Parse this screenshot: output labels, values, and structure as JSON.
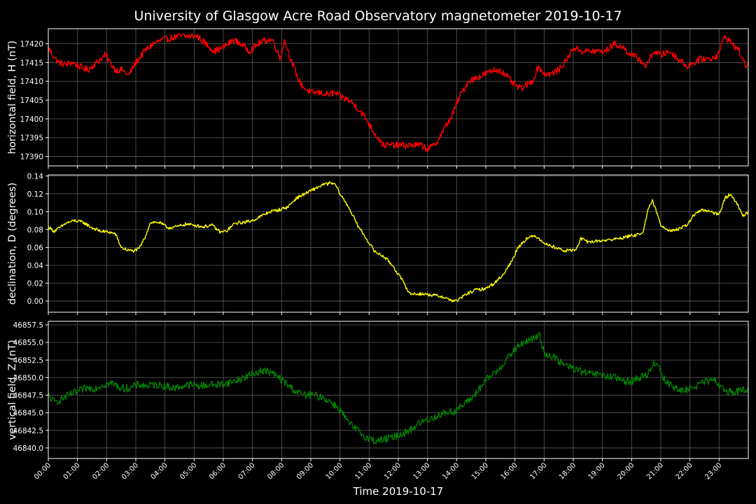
{
  "chart_data": {
    "type": "line",
    "title": "University of Glasgow Acre Road Observatory magnetometer 2019-10-17",
    "xlabel": "Time 2019-10-17",
    "x_unit": "hours",
    "xlim": [
      0,
      24
    ],
    "xtick_labels": [
      "00:00",
      "01:00",
      "02:00",
      "03:00",
      "04:00",
      "05:00",
      "06:00",
      "07:00",
      "08:00",
      "09:00",
      "10:00",
      "11:00",
      "12:00",
      "13:00",
      "14:00",
      "15:00",
      "16:00",
      "17:00",
      "18:00",
      "19:00",
      "20:00",
      "21:00",
      "22:00",
      "23:00"
    ],
    "grid": true,
    "panels": [
      {
        "ylabel": "horizontal field, H (nT)",
        "color": "#ff0000",
        "ylim": [
          17387.5,
          17424
        ],
        "yticks": [
          17390,
          17395,
          17400,
          17405,
          17410,
          17415,
          17420
        ],
        "ytick_labels": [
          "17390",
          "17395",
          "17400",
          "17405",
          "17410",
          "17415",
          "17420"
        ],
        "noise": 0.9,
        "x": [
          0,
          0.15,
          0.35,
          0.6,
          0.85,
          1.05,
          1.35,
          1.65,
          1.95,
          2.3,
          2.55,
          2.75,
          3,
          3.3,
          3.6,
          3.9,
          4.2,
          4.5,
          4.8,
          5.1,
          5.4,
          5.7,
          6.0,
          6.35,
          6.6,
          6.9,
          7.2,
          7.45,
          7.7,
          7.95,
          8.1,
          8.35,
          8.6,
          8.8,
          9.0,
          9.3,
          9.6,
          9.8,
          10.0,
          10.3,
          10.6,
          10.9,
          11.2,
          11.5,
          11.8,
          12.1,
          12.4,
          12.8,
          13.0,
          13.25,
          13.55,
          13.85,
          14.1,
          14.4,
          14.7,
          15.0,
          15.3,
          15.5,
          15.75,
          16.0,
          16.2,
          16.4,
          16.6,
          16.8,
          17.0,
          17.25,
          17.5,
          17.8,
          18.0,
          18.3,
          18.6,
          18.9,
          19.1,
          19.4,
          19.7,
          20.0,
          20.25,
          20.5,
          20.75,
          21.0,
          21.3,
          21.6,
          21.9,
          22.15,
          22.4,
          22.7,
          22.95,
          23.2,
          23.45,
          23.7,
          23.9,
          24
        ],
        "y": [
          17419,
          17417,
          17415,
          17414.5,
          17415,
          17414,
          17413,
          17415,
          17417,
          17413,
          17413,
          17411.5,
          17415,
          17418,
          17420,
          17421,
          17421.5,
          17422,
          17422,
          17422,
          17420,
          17418,
          17419,
          17421,
          17420,
          17418,
          17420,
          17421,
          17421,
          17416,
          17421,
          17415,
          17410,
          17408,
          17407,
          17407,
          17406.5,
          17407,
          17406,
          17405,
          17403,
          17400,
          17396,
          17393,
          17393,
          17393,
          17393,
          17393,
          17392,
          17393,
          17397,
          17401,
          17406,
          17410,
          17411,
          17412,
          17413,
          17413,
          17411,
          17409,
          17408,
          17409,
          17410,
          17414,
          17412,
          17412,
          17413,
          17416,
          17419,
          17418,
          17418,
          17418,
          17418,
          17420,
          17419,
          17417,
          17416,
          17414,
          17418,
          17417,
          17418,
          17416,
          17414,
          17415,
          17416,
          17416,
          17417,
          17422,
          17420,
          17418,
          17414,
          17415
        ]
      },
      {
        "ylabel": "declination, D (degrees)",
        "color": "#ffff00",
        "ylim": [
          -0.0125,
          0.141
        ],
        "yticks": [
          0.0,
          0.02,
          0.04,
          0.06,
          0.08,
          0.1,
          0.12,
          0.14
        ],
        "ytick_labels": [
          "0.00",
          "0.02",
          "0.04",
          "0.06",
          "0.08",
          "0.10",
          "0.12",
          "0.14"
        ],
        "noise": 0.0018,
        "x": [
          0,
          0.2,
          0.4,
          0.6,
          0.9,
          1.2,
          1.5,
          1.8,
          2.1,
          2.3,
          2.5,
          2.7,
          2.9,
          3.1,
          3.3,
          3.5,
          3.8,
          4.1,
          4.4,
          4.7,
          5.0,
          5.3,
          5.6,
          5.9,
          6.1,
          6.4,
          6.7,
          7.0,
          7.3,
          7.6,
          7.9,
          8.2,
          8.5,
          8.8,
          9.1,
          9.4,
          9.7,
          9.85,
          10.0,
          10.3,
          10.6,
          10.9,
          11.2,
          11.5,
          11.8,
          12.1,
          12.4,
          12.8,
          13.1,
          13.5,
          13.8,
          14.0,
          14.3,
          14.6,
          15.0,
          15.3,
          15.6,
          15.9,
          16.1,
          16.4,
          16.7,
          16.9,
          17.1,
          17.4,
          17.7,
          17.9,
          18.1,
          18.25,
          18.5,
          18.8,
          19.1,
          19.4,
          19.7,
          20.0,
          20.2,
          20.4,
          20.55,
          20.7,
          20.85,
          21.0,
          21.3,
          21.6,
          21.9,
          22.1,
          22.4,
          22.7,
          22.9,
          23.05,
          23.2,
          23.4,
          23.6,
          23.8,
          24
        ],
        "y": [
          0.083,
          0.078,
          0.082,
          0.087,
          0.09,
          0.088,
          0.082,
          0.078,
          0.077,
          0.075,
          0.06,
          0.057,
          0.056,
          0.058,
          0.07,
          0.088,
          0.088,
          0.082,
          0.083,
          0.086,
          0.085,
          0.083,
          0.085,
          0.077,
          0.078,
          0.087,
          0.088,
          0.09,
          0.095,
          0.1,
          0.102,
          0.105,
          0.115,
          0.12,
          0.125,
          0.13,
          0.132,
          0.13,
          0.12,
          0.105,
          0.085,
          0.07,
          0.055,
          0.05,
          0.04,
          0.025,
          0.008,
          0.008,
          0.007,
          0.005,
          0.001,
          0.0,
          0.007,
          0.012,
          0.014,
          0.02,
          0.03,
          0.045,
          0.06,
          0.07,
          0.073,
          0.068,
          0.063,
          0.06,
          0.056,
          0.057,
          0.057,
          0.07,
          0.066,
          0.067,
          0.068,
          0.069,
          0.071,
          0.073,
          0.074,
          0.078,
          0.1,
          0.113,
          0.1,
          0.085,
          0.079,
          0.08,
          0.085,
          0.095,
          0.102,
          0.1,
          0.097,
          0.1,
          0.115,
          0.12,
          0.11,
          0.095,
          0.1
        ]
      },
      {
        "ylabel": "vertical field, Z (nT)",
        "color": "#008000",
        "ylim": [
          46838.5,
          46858
        ],
        "yticks": [
          46840.0,
          46842.5,
          46845.0,
          46847.5,
          46850.0,
          46852.5,
          46855.0,
          46857.5
        ],
        "ytick_labels": [
          "46840.0",
          "46842.5",
          "46845.0",
          "46847.5",
          "46850.0",
          "46852.5",
          "46855.0",
          "46857.5"
        ],
        "noise": 0.55,
        "x": [
          0,
          0.2,
          0.4,
          0.7,
          1.0,
          1.3,
          1.6,
          1.9,
          2.2,
          2.5,
          2.8,
          3.1,
          3.4,
          3.7,
          4.0,
          4.3,
          4.6,
          4.9,
          5.2,
          5.5,
          5.8,
          6.1,
          6.4,
          6.7,
          7.0,
          7.3,
          7.6,
          7.9,
          8.2,
          8.5,
          8.8,
          9.1,
          9.4,
          9.7,
          10.0,
          10.3,
          10.6,
          10.9,
          11.2,
          11.5,
          11.8,
          12.1,
          12.4,
          12.7,
          13.0,
          13.3,
          13.6,
          13.9,
          14.2,
          14.5,
          14.8,
          15.1,
          15.4,
          15.7,
          16.0,
          16.3,
          16.6,
          16.85,
          17.0,
          17.3,
          17.6,
          17.9,
          18.2,
          18.5,
          18.8,
          19.1,
          19.4,
          19.7,
          20.0,
          20.3,
          20.55,
          20.75,
          20.9,
          21.1,
          21.4,
          21.7,
          22.0,
          22.3,
          22.6,
          22.9,
          23.1,
          23.3,
          23.6,
          23.8,
          24
        ],
        "y": [
          46847.5,
          46846.5,
          46846.8,
          46847.5,
          46848,
          46848.5,
          46848.5,
          46849,
          46849.2,
          46848.5,
          46848.5,
          46849,
          46848.8,
          46849,
          46848.8,
          46848.5,
          46848.8,
          46849,
          46848.8,
          46849,
          46849,
          46849.2,
          46849.5,
          46850,
          46850.5,
          46851,
          46850.8,
          46850,
          46849,
          46848,
          46847.5,
          46847.5,
          46847.2,
          46846.5,
          46845.5,
          46843.5,
          46842.5,
          46841.5,
          46841,
          46841.2,
          46841.5,
          46842,
          46842.5,
          46843.5,
          46844,
          46844.5,
          46845,
          46845.2,
          46846,
          46847,
          46848.5,
          46850,
          46851,
          46852.5,
          46854,
          46855,
          46855.5,
          46856,
          46853.5,
          46853,
          46852,
          46851.5,
          46851,
          46850.5,
          46850.5,
          46850.2,
          46850,
          46849.5,
          46849.5,
          46850,
          46850.5,
          46852,
          46852,
          46849.8,
          46848.8,
          46848,
          46848.5,
          46849,
          46849.5,
          46849.5,
          46848.5,
          46848,
          46848,
          46848.2,
          46848
        ]
      }
    ]
  }
}
